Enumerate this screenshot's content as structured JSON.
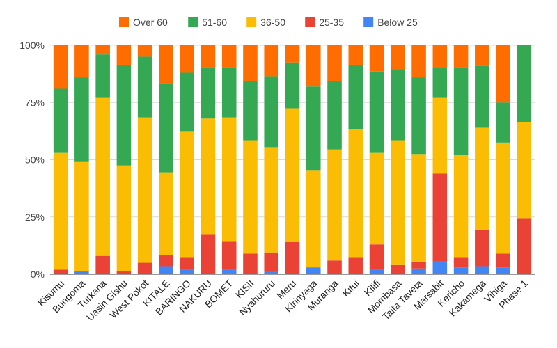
{
  "chart_data": {
    "type": "bar",
    "stacked": true,
    "normalized": true,
    "title": "",
    "xlabel": "",
    "ylabel": "",
    "ylim": [
      0,
      100
    ],
    "yticks": [
      "0%",
      "25%",
      "50%",
      "75%",
      "100%"
    ],
    "grid": true,
    "legend_position": "top",
    "categories": [
      "Kisumu",
      "Bungoma",
      "Turkana",
      "Uasin Gishu",
      "West Pokot",
      "KITALE",
      "BARINGO",
      "NAKURU",
      "BOMET",
      "KISII",
      "Nyahururu",
      "Meru",
      "Kirinyaga",
      "Muranga",
      "Kitui",
      "Kilifi",
      "Mombasa",
      "Taita Taveta",
      "Marsabit",
      "Kericho",
      "Kakamega",
      "Vihiga",
      "Phase 1"
    ],
    "series": [
      {
        "name": "Below 25",
        "color": "#4285f4",
        "values": [
          0,
          1,
          0,
          0,
          0,
          3.5,
          2,
          0,
          2,
          0,
          1.5,
          0,
          3,
          0,
          0,
          2,
          0,
          2.5,
          5.5,
          3,
          3.5,
          3,
          0
        ]
      },
      {
        "name": "25-35",
        "color": "#ea4335",
        "values": [
          2,
          0.5,
          8,
          1.5,
          5,
          5,
          5.5,
          17.5,
          12.5,
          9,
          8,
          14,
          0,
          6,
          7.5,
          11,
          4,
          3,
          38.5,
          4.5,
          16,
          6,
          24.5
        ]
      },
      {
        "name": "36-50",
        "color": "#fbbc04",
        "values": [
          51,
          47.5,
          69,
          46,
          63.5,
          36,
          55,
          50.5,
          54,
          49.5,
          46,
          58.5,
          42.5,
          48.5,
          56,
          40,
          54.5,
          47,
          33,
          44.5,
          44.5,
          48.5,
          42
        ]
      },
      {
        "name": "51-60",
        "color": "#34a853",
        "values": [
          28,
          37,
          19,
          44,
          26.5,
          39,
          25.5,
          22.5,
          22,
          26,
          31,
          20,
          36.5,
          30,
          28,
          35.5,
          31,
          33.5,
          13,
          38.5,
          27,
          17.5,
          33.5
        ]
      },
      {
        "name": "Over 60",
        "color": "#ff6d01",
        "values": [
          19,
          14,
          4,
          8.5,
          5,
          16.5,
          12,
          9.5,
          9.5,
          15.5,
          13.5,
          7.5,
          18,
          15.5,
          8.5,
          11.5,
          10.5,
          14,
          10,
          9.5,
          9,
          25,
          0
        ]
      }
    ],
    "legend_order": [
      "Over 60",
      "51-60",
      "36-50",
      "25-35",
      "Below 25"
    ]
  }
}
